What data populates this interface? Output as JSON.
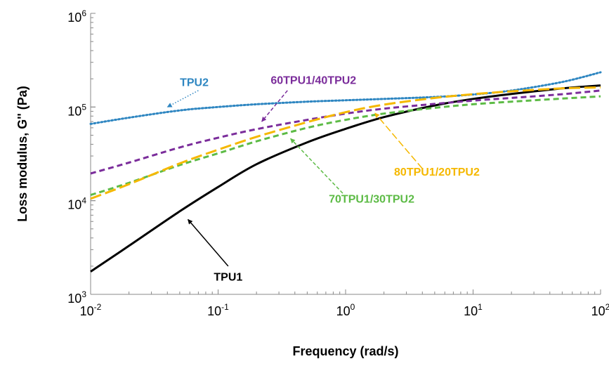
{
  "chart_data": {
    "type": "line",
    "title": "",
    "xlabel": "Frequency (rad/s)",
    "ylabel": "Loss  modulus, G'' (Pa)",
    "xscale": "log",
    "yscale": "log",
    "xlim": [
      0.01,
      100
    ],
    "ylim": [
      1000,
      1000000
    ],
    "grid": false,
    "legend": "none (series labelled directly with arrows)",
    "x_ticks": [
      {
        "base": "10",
        "exp": "-2"
      },
      {
        "base": "10",
        "exp": "-1"
      },
      {
        "base": "10",
        "exp": "0"
      },
      {
        "base": "10",
        "exp": "1"
      },
      {
        "base": "10",
        "exp": "2"
      }
    ],
    "y_ticks": [
      {
        "base": "10",
        "exp": "3"
      },
      {
        "base": "10",
        "exp": "4"
      },
      {
        "base": "10",
        "exp": "5"
      },
      {
        "base": "10",
        "exp": "6"
      }
    ],
    "x": [
      0.01,
      0.02,
      0.05,
      0.1,
      0.2,
      0.5,
      1,
      2,
      5,
      10,
      20,
      50,
      100
    ],
    "series": [
      {
        "name": "TPU1",
        "color": "#000000",
        "style": "solid",
        "values": [
          1750,
          3300,
          7700,
          14000,
          24500,
          42000,
          58500,
          78000,
          104000,
          122000,
          138000,
          158000,
          170000
        ]
      },
      {
        "name": "TPU2",
        "color": "#2E86C1",
        "style": "dotted",
        "values": [
          66000,
          77000,
          92000,
          100000,
          107000,
          114000,
          118000,
          122000,
          128000,
          136000,
          150000,
          185000,
          235000
        ]
      },
      {
        "name": "60TPU1/40TPU2",
        "color": "#7B2D9B",
        "style": "dashed",
        "values": [
          19500,
          25500,
          37000,
          47000,
          58000,
          73000,
          85000,
          96000,
          108000,
          117000,
          125000,
          137000,
          150000
        ]
      },
      {
        "name": "70TPU1/30TPU2",
        "color": "#5DBB46",
        "style": "dashed",
        "values": [
          11500,
          15500,
          24000,
          32000,
          43000,
          60000,
          73000,
          85000,
          98000,
          107000,
          114000,
          123000,
          130000
        ]
      },
      {
        "name": "80TPU1/20TPU2",
        "color": "#F5B800",
        "style": "long-dash",
        "values": [
          10500,
          15000,
          25000,
          35000,
          48000,
          69000,
          88000,
          106000,
          125000,
          137000,
          147000,
          158000,
          162000
        ]
      }
    ],
    "annotations": [
      {
        "series": "TPU2",
        "text": "TPU2",
        "color": "#2E86C1",
        "text_at": [
          0.065,
          168000
        ],
        "arrow_from": [
          0.07,
          150000
        ],
        "arrow_to": [
          0.04,
          100000
        ],
        "arrow_style": "dotted"
      },
      {
        "series": "60TPU1/40TPU2",
        "text": "60TPU1/40TPU2",
        "color": "#7B2D9B",
        "text_at": [
          0.56,
          176000
        ],
        "arrow_from": [
          0.35,
          150000
        ],
        "arrow_to": [
          0.22,
          70000
        ],
        "arrow_style": "dashed"
      },
      {
        "series": "80TPU1/20TPU2",
        "text": "80TPU1/20TPU2",
        "color": "#F5B800",
        "text_at": [
          5.2,
          18500
        ],
        "arrow_from": [
          4.0,
          22000
        ],
        "arrow_to": [
          1.7,
          86000
        ],
        "arrow_style": "long-dash"
      },
      {
        "series": "70TPU1/30TPU2",
        "text": "70TPU1/30TPU2",
        "color": "#5DBB46",
        "text_at": [
          1.6,
          9500
        ],
        "arrow_from": [
          0.95,
          12000
        ],
        "arrow_to": [
          0.37,
          46000
        ],
        "arrow_style": "dashed"
      },
      {
        "series": "TPU1",
        "text": "TPU1",
        "color": "#000000",
        "text_at": [
          0.12,
          1400
        ],
        "arrow_from": [
          0.12,
          2000
        ],
        "arrow_to": [
          0.058,
          6300
        ],
        "arrow_style": "solid"
      }
    ]
  }
}
